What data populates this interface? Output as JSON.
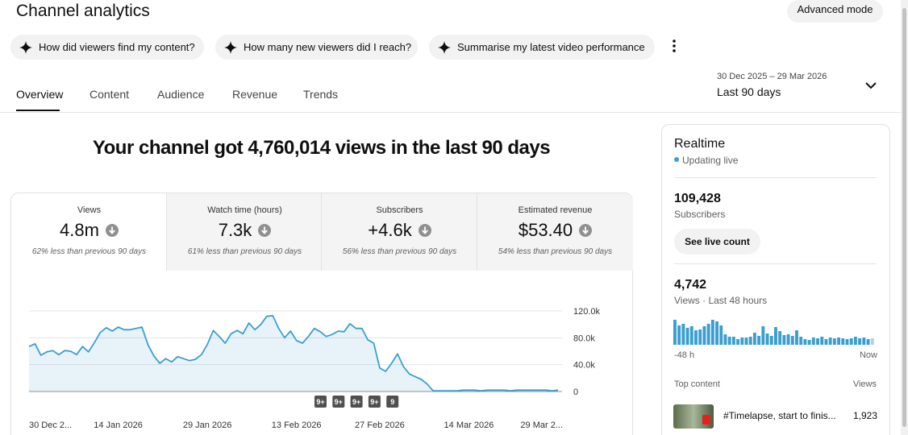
{
  "header": {
    "title": "Channel analytics",
    "button": "Advanced mode"
  },
  "suggestions": [
    "How did viewers find my content?",
    "How many new viewers did I reach?",
    "Summarise my latest video performance"
  ],
  "tabs": [
    "Overview",
    "Content",
    "Audience",
    "Revenue",
    "Trends"
  ],
  "date_range": {
    "dates": "30 Dec 2025 – 29 Mar 2026",
    "label": "Last 90 days"
  },
  "headline": "Your channel got 4,760,014 views in the last 90 days",
  "metrics": [
    {
      "label": "Views",
      "value": "4.8m",
      "comparison": "62% less than previous 90 days"
    },
    {
      "label": "Watch time (hours)",
      "value": "7.3k",
      "comparison": "61% less than previous 90 days"
    },
    {
      "label": "Subscribers",
      "value": "+4.6k",
      "comparison": "56% less than previous 90 days"
    },
    {
      "label": "Estimated revenue",
      "value": "$53.40",
      "comparison": "54% less than previous 90 days"
    }
  ],
  "chart_data": {
    "type": "line",
    "categories": [
      "30 Dec 2...",
      null,
      null,
      null,
      null,
      null,
      null,
      null,
      null,
      null,
      null,
      null,
      null,
      null,
      null,
      "14 Jan 2026",
      null,
      null,
      null,
      null,
      null,
      null,
      null,
      null,
      null,
      null,
      null,
      null,
      null,
      null,
      "29 Jan 2026",
      null,
      null,
      null,
      null,
      null,
      null,
      null,
      null,
      null,
      null,
      null,
      null,
      null,
      null,
      "13 Feb 2026",
      null,
      null,
      null,
      null,
      null,
      null,
      null,
      null,
      null,
      null,
      null,
      null,
      null,
      "27 Feb 2026",
      null,
      null,
      null,
      null,
      null,
      null,
      null,
      null,
      null,
      null,
      null,
      null,
      null,
      null,
      "14 Mar 2026",
      null,
      null,
      null,
      null,
      null,
      null,
      null,
      null,
      null,
      null,
      null,
      null,
      null,
      null,
      "29 Mar 2..."
    ],
    "values": [
      67000,
      71000,
      54000,
      59000,
      61000,
      55000,
      61000,
      60000,
      55000,
      67000,
      59000,
      73000,
      88000,
      95000,
      90000,
      96000,
      92000,
      92000,
      94000,
      96000,
      70000,
      53000,
      42000,
      49000,
      44000,
      52000,
      49000,
      46000,
      48000,
      55000,
      70000,
      91000,
      82000,
      72000,
      86000,
      91000,
      86000,
      102000,
      92000,
      100000,
      112000,
      113000,
      94000,
      80000,
      90000,
      76000,
      72000,
      82000,
      94000,
      89000,
      82000,
      85000,
      90000,
      89000,
      101000,
      94000,
      94000,
      77000,
      72000,
      35000,
      30000,
      42000,
      56000,
      37000,
      26000,
      22000,
      18000,
      11000,
      1000,
      1000,
      1000,
      1000,
      1000,
      2000,
      2000,
      2000,
      1000,
      2000,
      2000,
      2000,
      2000,
      1000,
      2000,
      2000,
      2000,
      2000,
      2000,
      2000,
      1000,
      2000
    ],
    "color": "#3a9fd0",
    "ylim": [
      0,
      120000
    ],
    "yticks": [
      0,
      {
        "value": 40000,
        "label": "40.0k"
      },
      {
        "value": 80000,
        "label": "80.0k"
      },
      {
        "value": 120000,
        "label": "120.0k"
      }
    ],
    "grid": true,
    "annotations": [
      "9+",
      "9+",
      "9+",
      "9+",
      "9"
    ]
  },
  "realtime": {
    "title": "Realtime",
    "status": "Updating live",
    "subscribers": "109,428",
    "subscribers_label": "Subscribers",
    "button": "See live count",
    "views": "4,742",
    "views_label": "Views · Last 48 hours",
    "bars": {
      "type": "bar",
      "values": [
        217,
        168,
        182,
        147,
        161,
        126,
        133,
        161,
        182,
        217,
        203,
        168,
        91,
        70,
        70,
        49,
        63,
        63,
        70,
        105,
        77,
        161,
        98,
        77,
        154,
        119,
        84,
        91,
        77,
        126,
        70,
        49,
        42,
        63,
        56,
        70,
        49,
        63,
        56,
        63,
        56,
        49,
        56,
        70,
        56,
        63,
        49,
        56
      ],
      "color": "#3a9fd0",
      "x_start": "-48 h",
      "x_end": "Now"
    },
    "top_content": {
      "title": "Top content",
      "views_header": "Views",
      "items": [
        {
          "title": "#Timelapse, start to finis...",
          "views": "1,923"
        }
      ]
    }
  }
}
